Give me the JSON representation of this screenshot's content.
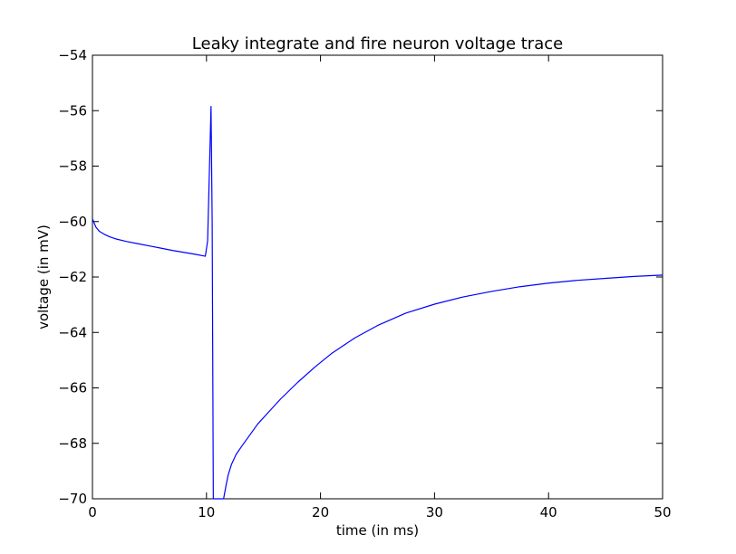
{
  "chart_data": {
    "type": "line",
    "title": "Leaky integrate and fire neuron voltage trace",
    "xlabel": "time (in ms)",
    "ylabel": "voltage (in mV)",
    "xlim": [
      0,
      50
    ],
    "ylim": [
      -70,
      -54
    ],
    "xticks": [
      0,
      10,
      20,
      30,
      40,
      50
    ],
    "yticks": [
      -70,
      -68,
      -66,
      -64,
      -62,
      -60,
      -58,
      -56,
      -54
    ],
    "xtick_labels": [
      "0",
      "10",
      "20",
      "30",
      "40",
      "50"
    ],
    "ytick_labels": [
      "−70",
      "−68",
      "−66",
      "−64",
      "−62",
      "−60",
      "−58",
      "−56",
      "−54"
    ],
    "grid": false,
    "series": [
      {
        "color": "#0000ff",
        "x": [
          0,
          0.3,
          0.6,
          1,
          1.5,
          2,
          3,
          4,
          5,
          6,
          7,
          8,
          9,
          9.9,
          10.1,
          10.4,
          10.5,
          10.6,
          11.5,
          11.7,
          11.9,
          12.2,
          12.6,
          13.1,
          13.8,
          14.5,
          15.5,
          16.5,
          18,
          19.5,
          21,
          23,
          25,
          27.5,
          30,
          32.5,
          35,
          37.5,
          40,
          42.5,
          45,
          47.5,
          50
        ],
        "y": [
          -59.9,
          -60.2,
          -60.35,
          -60.45,
          -60.55,
          -60.62,
          -60.72,
          -60.8,
          -60.88,
          -60.96,
          -61.04,
          -61.11,
          -61.18,
          -61.25,
          -60.7,
          -55.85,
          -60.0,
          -70.0,
          -70.0,
          -69.55,
          -69.15,
          -68.75,
          -68.4,
          -68.1,
          -67.7,
          -67.3,
          -66.85,
          -66.4,
          -65.8,
          -65.25,
          -64.75,
          -64.2,
          -63.75,
          -63.3,
          -62.98,
          -62.72,
          -62.52,
          -62.35,
          -62.22,
          -62.12,
          -62.05,
          -61.98,
          -61.93
        ]
      }
    ]
  }
}
